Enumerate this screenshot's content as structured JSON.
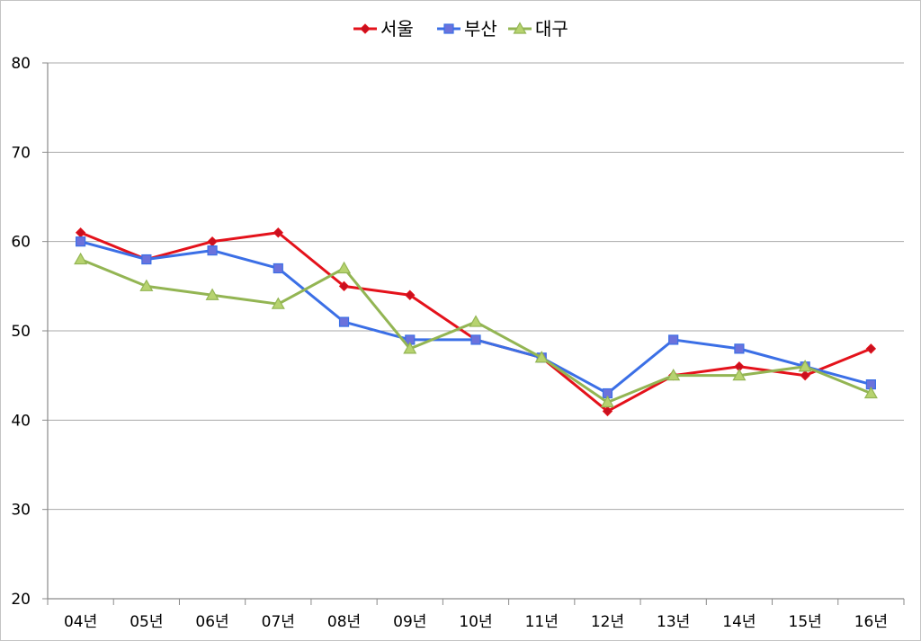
{
  "chart_data": {
    "type": "line",
    "categories": [
      "04년",
      "05년",
      "06년",
      "07년",
      "08년",
      "09년",
      "10년",
      "11년",
      "12년",
      "13년",
      "14년",
      "15년",
      "16년"
    ],
    "ylim": [
      20,
      80
    ],
    "yticks": [
      20,
      30,
      40,
      50,
      60,
      70,
      80
    ],
    "grid": true,
    "legend": "top-center",
    "series": [
      {
        "name": "서울",
        "color": "#e4121b",
        "marker": "diamond",
        "marker_color": "#c9101f",
        "values": [
          61,
          58,
          60,
          61,
          55,
          54,
          49,
          47,
          41,
          45,
          46,
          45,
          48
        ]
      },
      {
        "name": "부산",
        "color": "#3b6fe6",
        "marker": "square",
        "marker_color": "#6b72dc",
        "values": [
          60,
          58,
          59,
          57,
          51,
          49,
          49,
          47,
          43,
          49,
          48,
          46,
          44
        ]
      },
      {
        "name": "대구",
        "color": "#93b553",
        "marker": "triangle",
        "marker_color": "#b7d36f",
        "values": [
          58,
          55,
          54,
          53,
          57,
          48,
          51,
          47,
          42,
          45,
          45,
          46,
          43
        ]
      }
    ]
  }
}
